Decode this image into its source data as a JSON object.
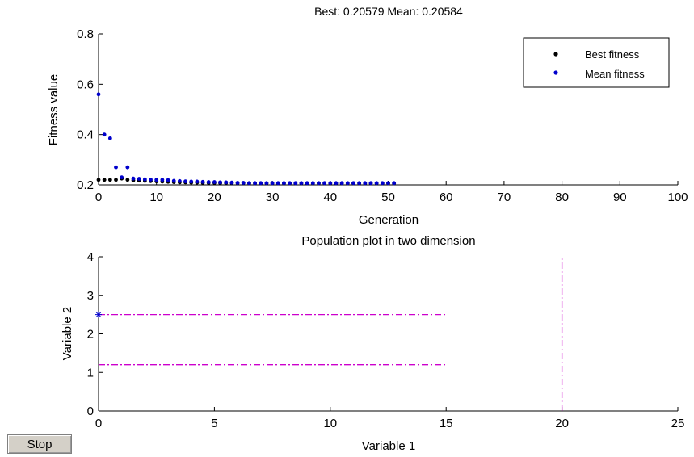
{
  "chart_data": [
    {
      "type": "scatter",
      "title": "Best: 0.20579 Mean: 0.20584",
      "xlabel": "Generation",
      "ylabel": "Fitness value",
      "xlim": [
        0,
        100
      ],
      "ylim": [
        0.2,
        0.8
      ],
      "xticks": [
        0,
        10,
        20,
        30,
        40,
        50,
        60,
        70,
        80,
        90,
        100
      ],
      "yticks": [
        0.2,
        0.4,
        0.6,
        0.8
      ],
      "grid": false,
      "legend_position": "top-right",
      "series": [
        {
          "name": "Best fitness",
          "color": "#000000",
          "marker": "point",
          "x": [
            0,
            1,
            2,
            3,
            4,
            5,
            6,
            7,
            8,
            9,
            10,
            11,
            12,
            13,
            14,
            15,
            16,
            17,
            18,
            19,
            20,
            21,
            22,
            23,
            24,
            25,
            26,
            27,
            28,
            29,
            30,
            31,
            32,
            33,
            34,
            35,
            36,
            37,
            38,
            39,
            40,
            41,
            42,
            43,
            44,
            45,
            46,
            47,
            48,
            49,
            50,
            51
          ],
          "y": [
            0.22,
            0.22,
            0.22,
            0.22,
            0.225,
            0.22,
            0.218,
            0.217,
            0.216,
            0.215,
            0.214,
            0.213,
            0.212,
            0.211,
            0.21,
            0.21,
            0.209,
            0.209,
            0.208,
            0.208,
            0.208,
            0.207,
            0.207,
            0.207,
            0.207,
            0.207,
            0.206,
            0.206,
            0.206,
            0.206,
            0.206,
            0.206,
            0.206,
            0.206,
            0.206,
            0.206,
            0.206,
            0.206,
            0.206,
            0.206,
            0.206,
            0.206,
            0.206,
            0.206,
            0.206,
            0.206,
            0.206,
            0.206,
            0.206,
            0.206,
            0.206,
            0.206
          ]
        },
        {
          "name": "Mean fitness",
          "color": "#0000cc",
          "marker": "point",
          "x": [
            0,
            1,
            2,
            3,
            4,
            5,
            6,
            7,
            8,
            9,
            10,
            11,
            12,
            13,
            14,
            15,
            16,
            17,
            18,
            19,
            20,
            21,
            22,
            23,
            24,
            25,
            26,
            27,
            28,
            29,
            30,
            31,
            32,
            33,
            34,
            35,
            36,
            37,
            38,
            39,
            40,
            41,
            42,
            43,
            44,
            45,
            46,
            47,
            48,
            49,
            50,
            51
          ],
          "y": [
            0.56,
            0.4,
            0.385,
            0.27,
            0.23,
            0.27,
            0.225,
            0.224,
            0.222,
            0.221,
            0.22,
            0.22,
            0.219,
            0.216,
            0.215,
            0.214,
            0.213,
            0.213,
            0.212,
            0.211,
            0.211,
            0.21,
            0.21,
            0.209,
            0.208,
            0.208,
            0.207,
            0.207,
            0.207,
            0.207,
            0.207,
            0.207,
            0.207,
            0.207,
            0.207,
            0.207,
            0.207,
            0.207,
            0.207,
            0.207,
            0.207,
            0.207,
            0.207,
            0.207,
            0.207,
            0.207,
            0.207,
            0.207,
            0.207,
            0.207,
            0.207,
            0.207
          ]
        }
      ]
    },
    {
      "type": "scatter",
      "title": "Population plot in two dimension",
      "xlabel": "Variable  1",
      "ylabel": "Variable  2",
      "xlim": [
        0,
        25
      ],
      "ylim": [
        0,
        4
      ],
      "xticks": [
        0,
        5,
        10,
        15,
        20,
        25
      ],
      "yticks": [
        0,
        1,
        2,
        3,
        4
      ],
      "grid": false,
      "points": [
        {
          "x": 0,
          "y": 2.5,
          "color": "#0000cc",
          "marker": "star"
        }
      ],
      "lines": [
        {
          "x": [
            0,
            15
          ],
          "y": [
            2.5,
            2.5
          ],
          "color": "#cc00cc",
          "style": "dash-dot"
        },
        {
          "x": [
            0,
            15
          ],
          "y": [
            1.2,
            1.2
          ],
          "color": "#cc00cc",
          "style": "dash-dot"
        },
        {
          "x": [
            20,
            20
          ],
          "y": [
            0,
            4
          ],
          "color": "#cc00cc",
          "style": "dash-dot"
        }
      ]
    }
  ],
  "controls": {
    "stop_label": "Stop"
  }
}
